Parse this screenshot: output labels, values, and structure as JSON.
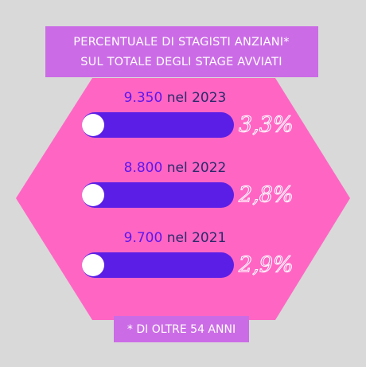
{
  "header": {
    "lines": [
      "PERCENTUALE DI STAGISTI ANZIANI*",
      "SUL TOTALE DEGLI STAGE AVVIATI"
    ]
  },
  "rows": [
    {
      "count": "9.350",
      "year_text": "nel 2023",
      "percent": "3,3%"
    },
    {
      "count": "8.800",
      "year_text": "nel 2022",
      "percent": "2,8%"
    },
    {
      "count": "9.700",
      "year_text": "nel 2021",
      "percent": "2,9%"
    }
  ],
  "footnote": "* DI OLTRE 54 ANNI"
}
